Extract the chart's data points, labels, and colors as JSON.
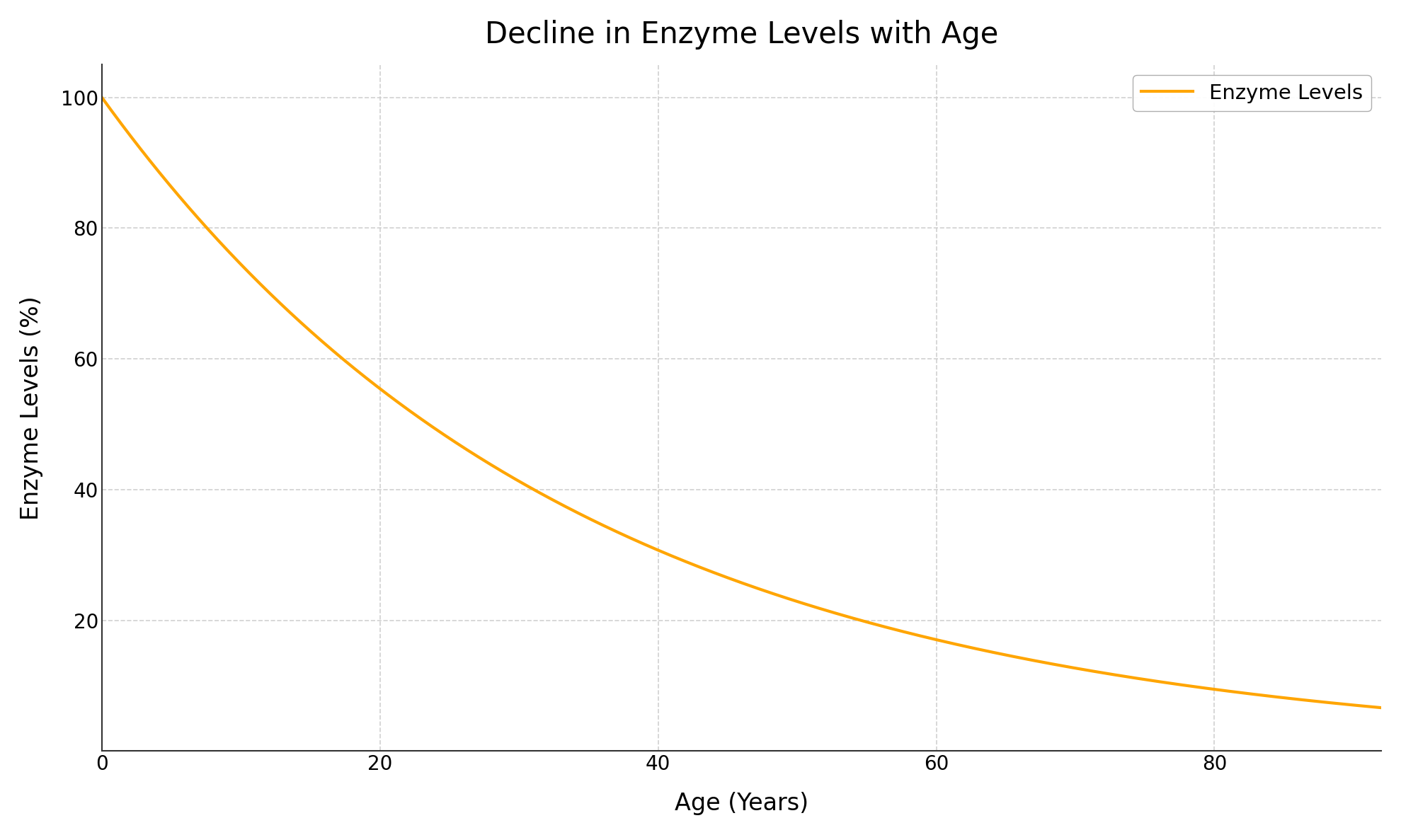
{
  "title": "Decline in Enzyme Levels with Age",
  "xlabel": "Age (Years)",
  "ylabel": "Enzyme Levels (%)",
  "line_color": "#FFA500",
  "line_width": 3.0,
  "legend_label": "Enzyme Levels",
  "x_min": 0,
  "x_max": 92,
  "y_min": 0,
  "y_max": 105,
  "x_ticks": [
    0,
    20,
    40,
    60,
    80
  ],
  "y_ticks": [
    20,
    40,
    60,
    80,
    100
  ],
  "decay_rate": 0.0295,
  "initial_value": 100,
  "title_fontsize": 30,
  "label_fontsize": 24,
  "tick_fontsize": 20,
  "legend_fontsize": 21,
  "background_color": "#ffffff",
  "grid_color": "#cccccc",
  "grid_style": "--",
  "grid_alpha": 0.9
}
